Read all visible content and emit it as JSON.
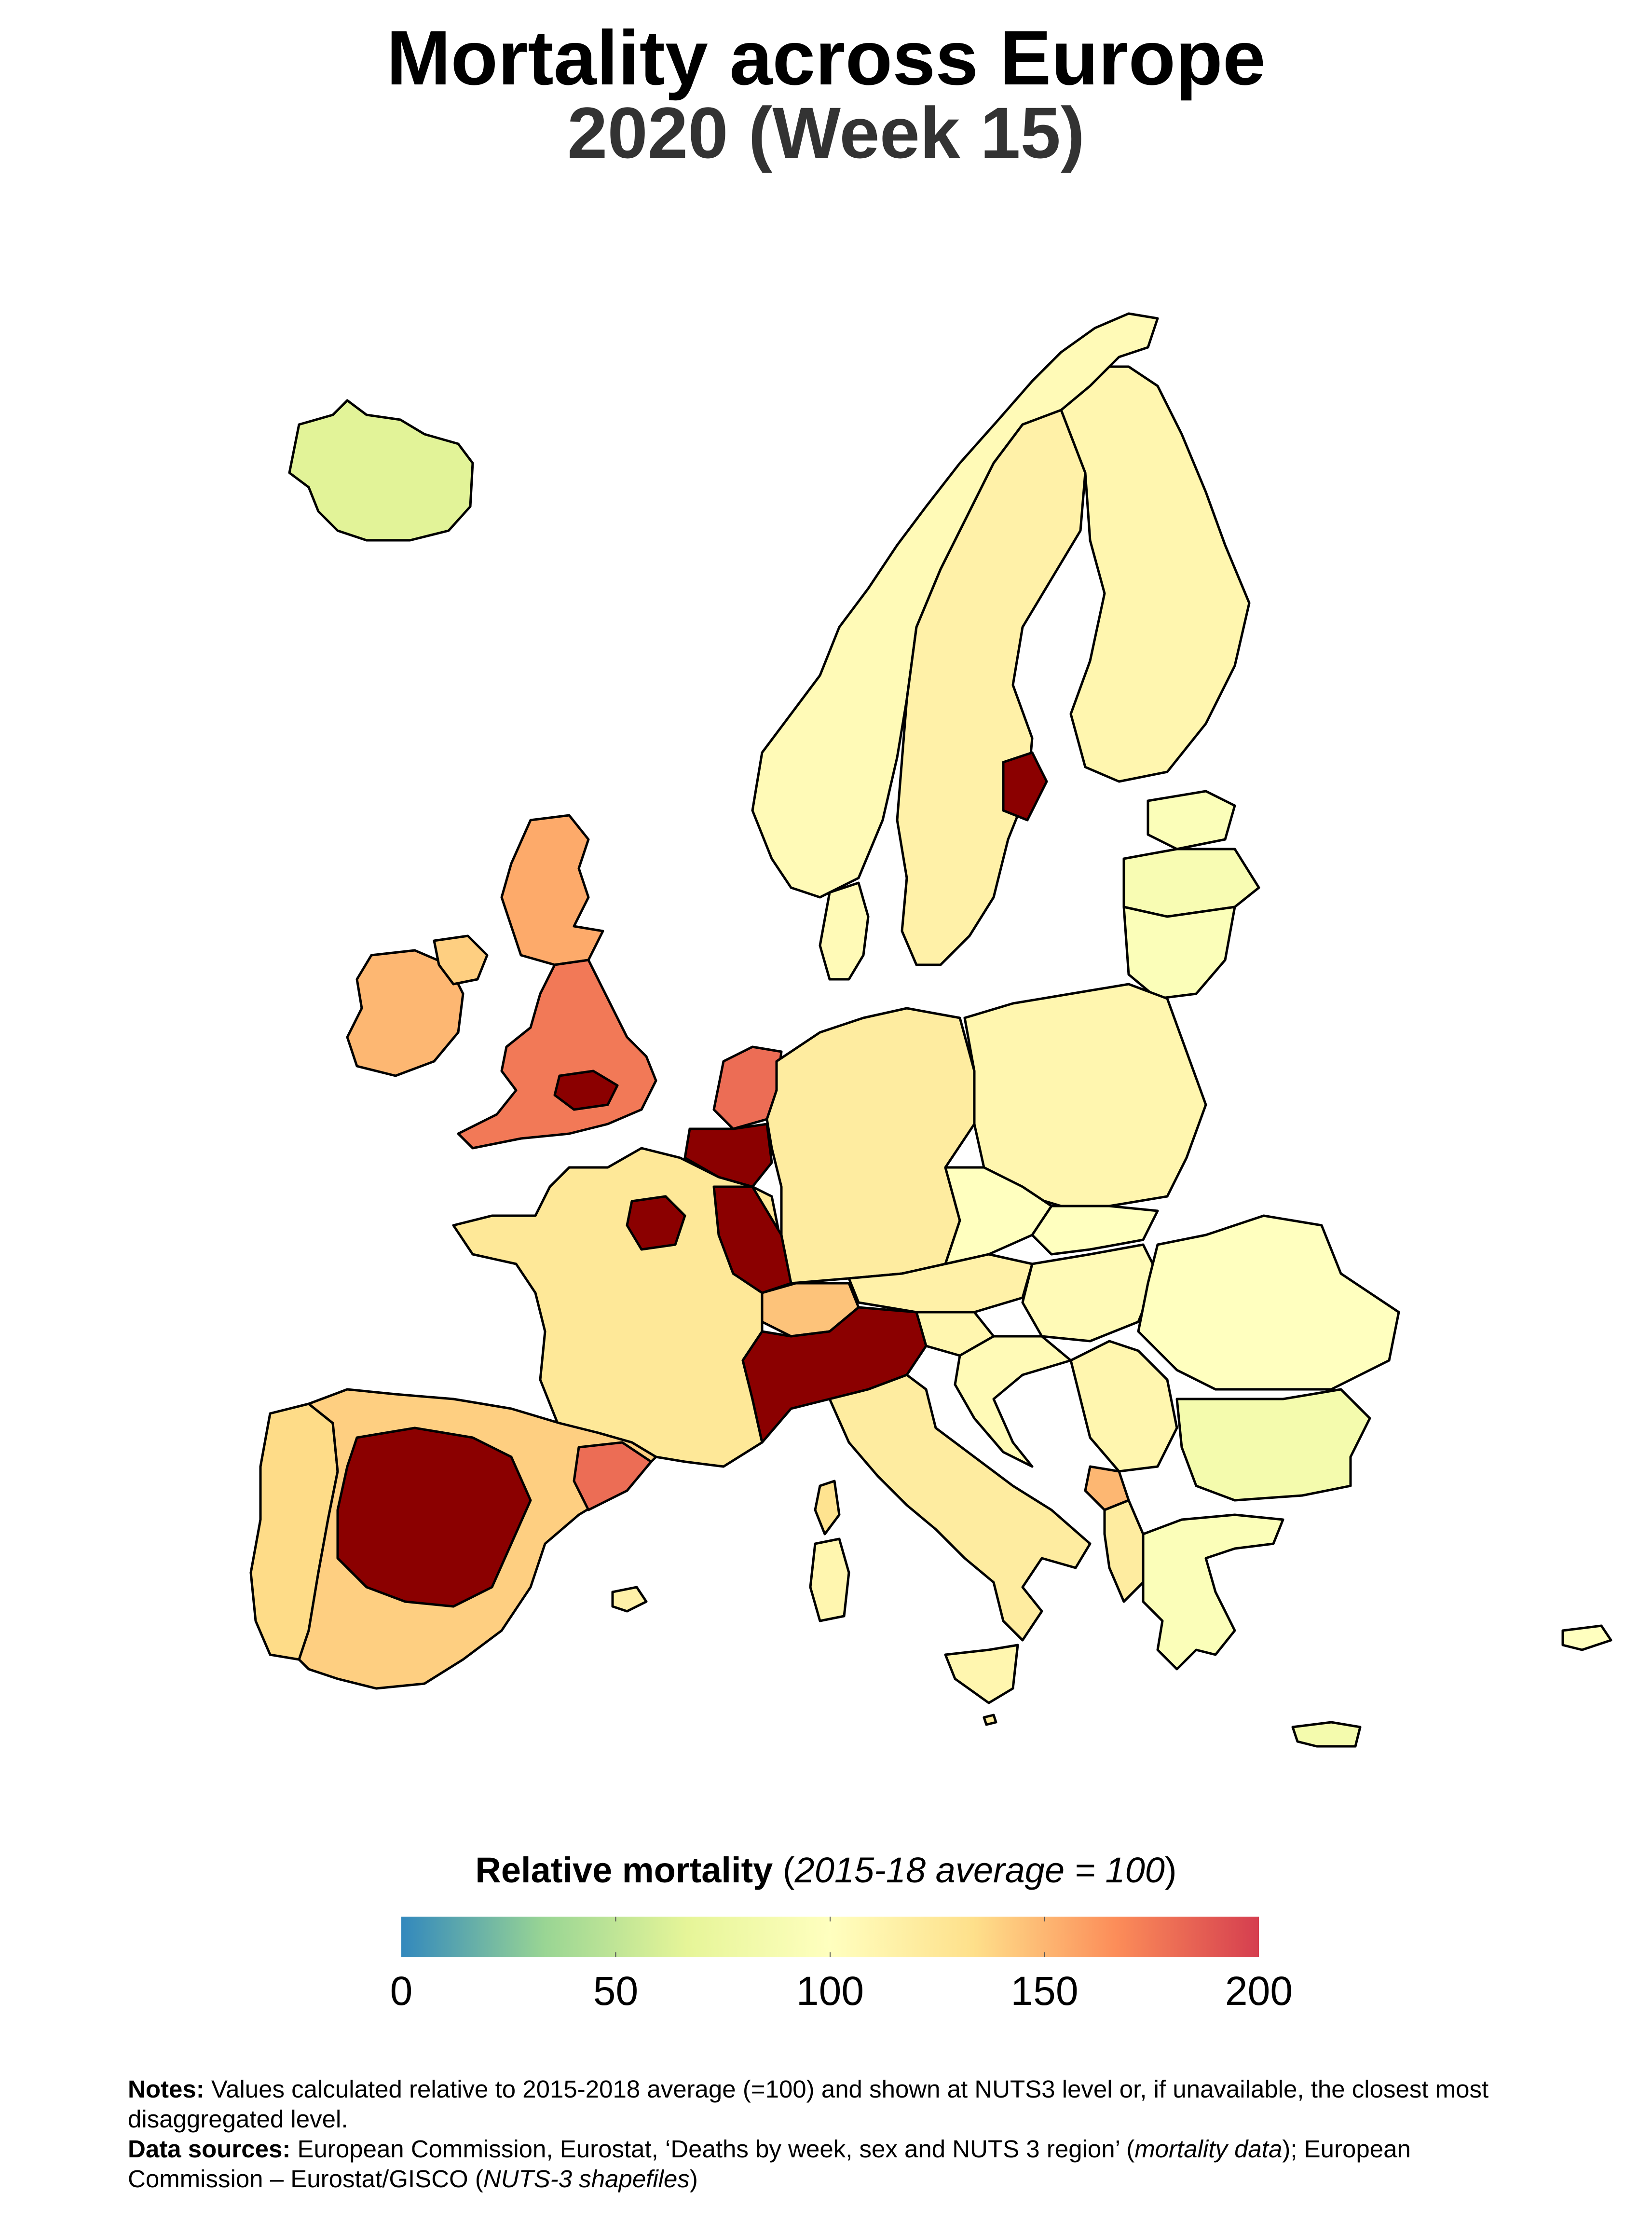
{
  "title": "Mortality across Europe",
  "subtitle": "2020 (Week 15)",
  "legend": {
    "title_bold": "Relative mortality",
    "title_open": "(",
    "title_italic": "2015-18 average = 100",
    "title_close": ")",
    "ticks": [
      "0",
      "50",
      "100",
      "150",
      "200"
    ],
    "min": 0,
    "max": 200,
    "colors": [
      "#3288bd",
      "#99d594",
      "#e6f598",
      "#ffffbf",
      "#fee08b",
      "#fc8d59",
      "#d53e4f"
    ],
    "over_color": "#8b0000"
  },
  "notes": {
    "label": "Notes:",
    "text": "Values calculated relative to 2015-2018 average (=100) and shown at NUTS3 level or, if unavailable, the closest most disaggregated level."
  },
  "sources": {
    "label": "Data sources:",
    "text_1": "European Commission, Eurostat, ‘Deaths by week, sex and NUTS 3 region’ (",
    "italic_1": "mortality data",
    "text_2": "); European Commission – Eurostat/GISCO (",
    "italic_2": "NUTS-3 shapefiles",
    "text_3": ")"
  },
  "map": {
    "border_color": "#000000",
    "regions": [
      {
        "name": "Iceland",
        "value": 65
      },
      {
        "name": "Ireland",
        "value": 150
      },
      {
        "name": "Northern Ireland",
        "value": 140
      },
      {
        "name": "Scotland",
        "value": 155
      },
      {
        "name": "England and Wales",
        "value": 175
      },
      {
        "name": "London",
        "value": 230
      },
      {
        "name": "Norway",
        "value": 105
      },
      {
        "name": "Sweden",
        "value": 115
      },
      {
        "name": "Stockholm",
        "value": 230
      },
      {
        "name": "Finland",
        "value": 110
      },
      {
        "name": "Estonia",
        "value": 95
      },
      {
        "name": "Latvia",
        "value": 90
      },
      {
        "name": "Lithuania",
        "value": 95
      },
      {
        "name": "Denmark",
        "value": 105
      },
      {
        "name": "Netherlands",
        "value": 180
      },
      {
        "name": "Belgium",
        "value": 215
      },
      {
        "name": "Luxembourg",
        "value": 150
      },
      {
        "name": "France",
        "value": 125
      },
      {
        "name": "Île-de-France",
        "value": 230
      },
      {
        "name": "Grand Est",
        "value": 210
      },
      {
        "name": "Germany",
        "value": 120
      },
      {
        "name": "Poland",
        "value": 110
      },
      {
        "name": "Czechia",
        "value": 100
      },
      {
        "name": "Slovakia",
        "value": 100
      },
      {
        "name": "Austria",
        "value": 115
      },
      {
        "name": "Switzerland",
        "value": 145
      },
      {
        "name": "Hungary",
        "value": 105
      },
      {
        "name": "Slovenia",
        "value": 110
      },
      {
        "name": "Croatia",
        "value": 105
      },
      {
        "name": "Romania",
        "value": 100
      },
      {
        "name": "Bulgaria",
        "value": 85
      },
      {
        "name": "Serbia",
        "value": 110
      },
      {
        "name": "Montenegro",
        "value": 150
      },
      {
        "name": "Albania",
        "value": 120
      },
      {
        "name": "Greece",
        "value": 95
      },
      {
        "name": "Northern Italy",
        "value": 235
      },
      {
        "name": "Italy",
        "value": 120
      },
      {
        "name": "Sardinia",
        "value": 110
      },
      {
        "name": "Sicily",
        "value": 110
      },
      {
        "name": "Corsica",
        "value": 130
      },
      {
        "name": "Portugal",
        "value": 135
      },
      {
        "name": "Spain",
        "value": 140
      },
      {
        "name": "Central Spain",
        "value": 230
      },
      {
        "name": "Catalonia",
        "value": 180
      },
      {
        "name": "Balearic Islands",
        "value": 115
      },
      {
        "name": "Malta",
        "value": 120
      },
      {
        "name": "Cyprus",
        "value": 100
      },
      {
        "name": "Crete",
        "value": 85
      }
    ]
  }
}
